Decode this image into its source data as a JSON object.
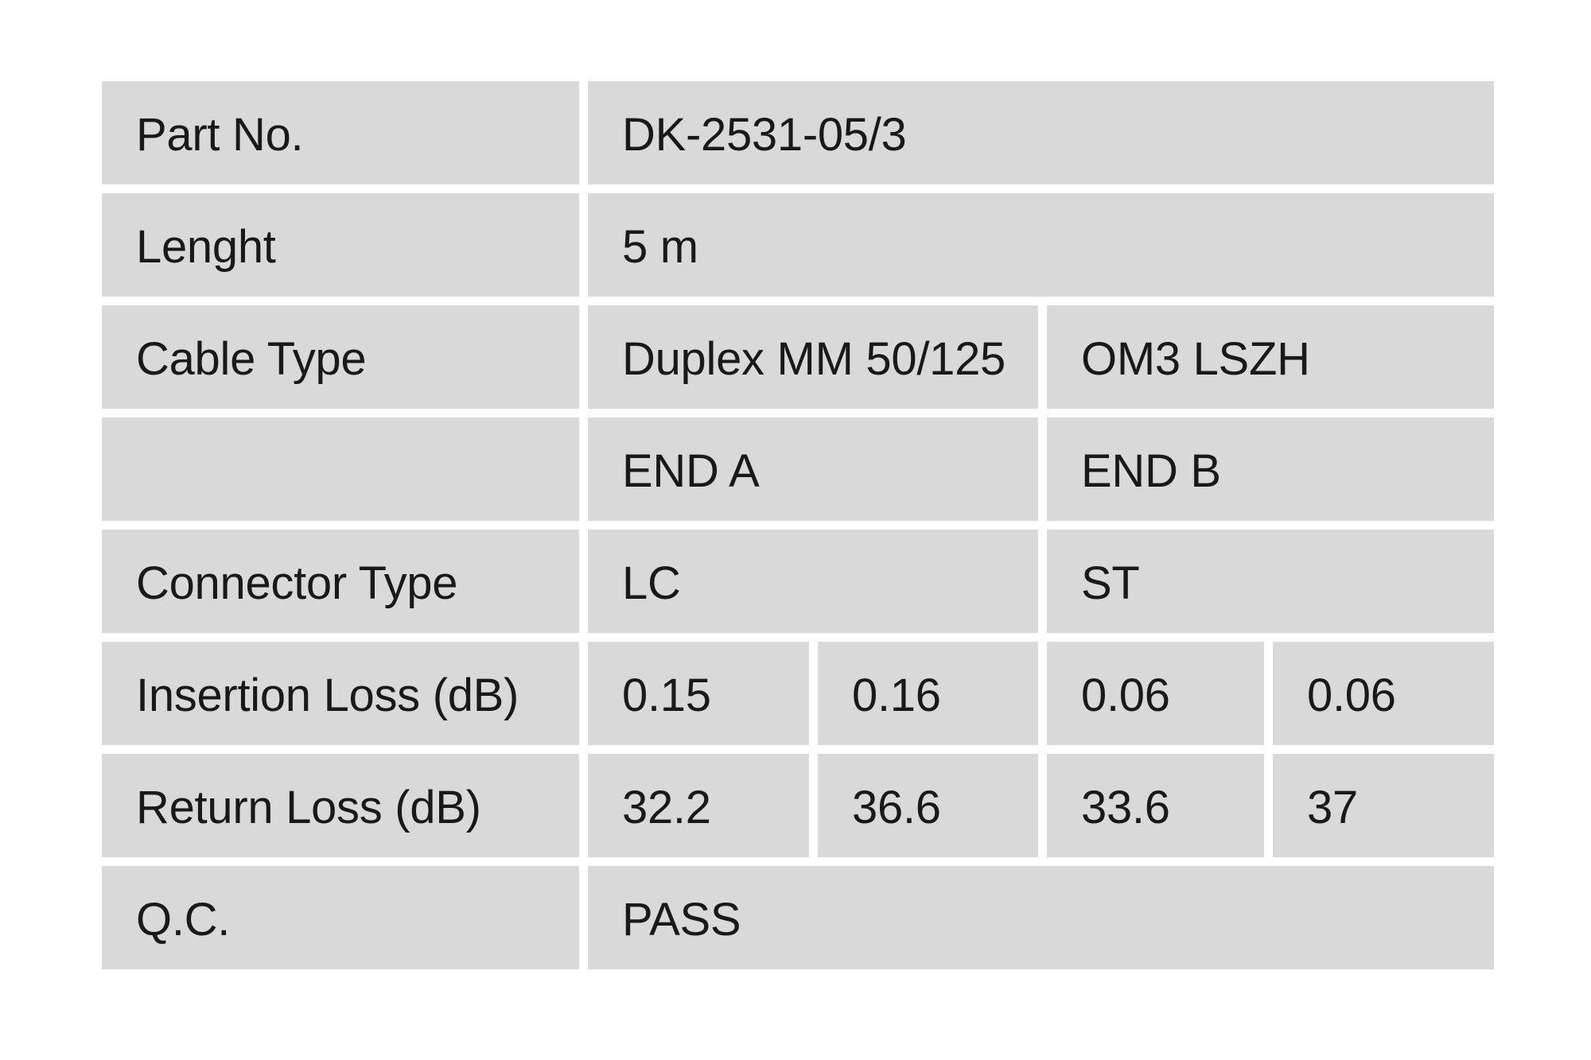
{
  "colors": {
    "page_background": "#ffffff",
    "cell_background": "#d9d9d9",
    "text": "#191919"
  },
  "table": {
    "rows": [
      {
        "label": "Part No.",
        "value": "DK-2531-05/3"
      },
      {
        "label": "Lenght",
        "value": "5 m"
      },
      {
        "label": "Cable Type",
        "end_a": "Duplex MM 50/125",
        "end_b": "OM3 LSZH"
      },
      {
        "label": "",
        "end_a": "END A",
        "end_b": "END B"
      },
      {
        "label": "Connector Type",
        "end_a": "LC",
        "end_b": "ST"
      },
      {
        "label": "Insertion Loss (dB)",
        "values": [
          "0.15",
          "0.16",
          "0.06",
          "0.06"
        ]
      },
      {
        "label": "Return Loss (dB)",
        "values": [
          "32.2",
          "36.6",
          "33.6",
          "37"
        ]
      },
      {
        "label": "Q.C.",
        "value": "PASS"
      }
    ]
  }
}
